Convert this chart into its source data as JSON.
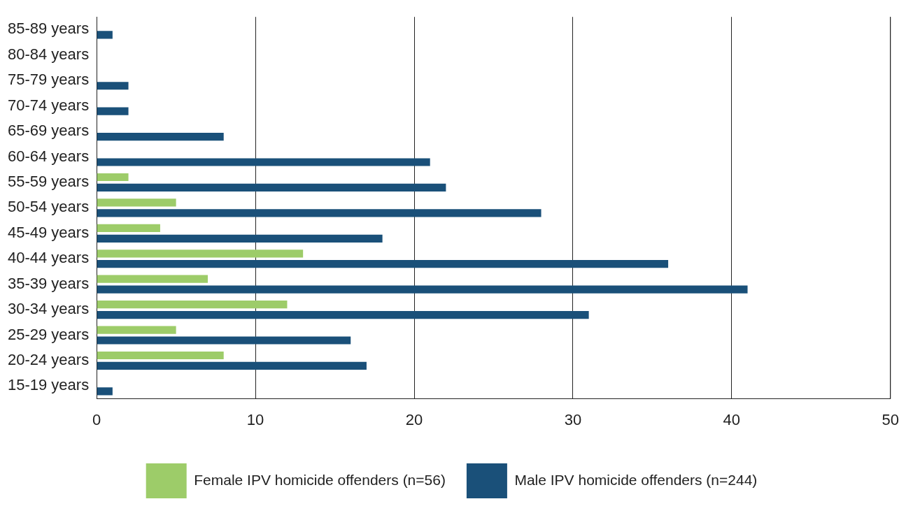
{
  "chart_data": {
    "type": "bar",
    "orientation": "horizontal",
    "categories": [
      "85-89 years",
      "80-84 years",
      "75-79 years",
      "70-74 years",
      "65-69 years",
      "60-64 years",
      "55-59 years",
      "50-54 years",
      "45-49 years",
      "40-44 years",
      "35-39 years",
      "30-34 years",
      "25-29 years",
      "20-24 years",
      "15-19 years"
    ],
    "series": [
      {
        "name": "Female IPV homicide offenders (n=56)",
        "color": "#9dcc69",
        "values": [
          0,
          0,
          0,
          0,
          0,
          0,
          2,
          5,
          4,
          13,
          7,
          12,
          5,
          8,
          0
        ]
      },
      {
        "name": "Male IPV homicide offenders (n=244)",
        "color": "#1a5079",
        "values": [
          1,
          0,
          2,
          2,
          8,
          21,
          22,
          28,
          18,
          36,
          41,
          31,
          16,
          17,
          1
        ]
      }
    ],
    "xlim": [
      0,
      50
    ],
    "xticks": [
      0,
      10,
      20,
      30,
      40,
      50
    ],
    "grid": "x",
    "legend": "bottom"
  }
}
